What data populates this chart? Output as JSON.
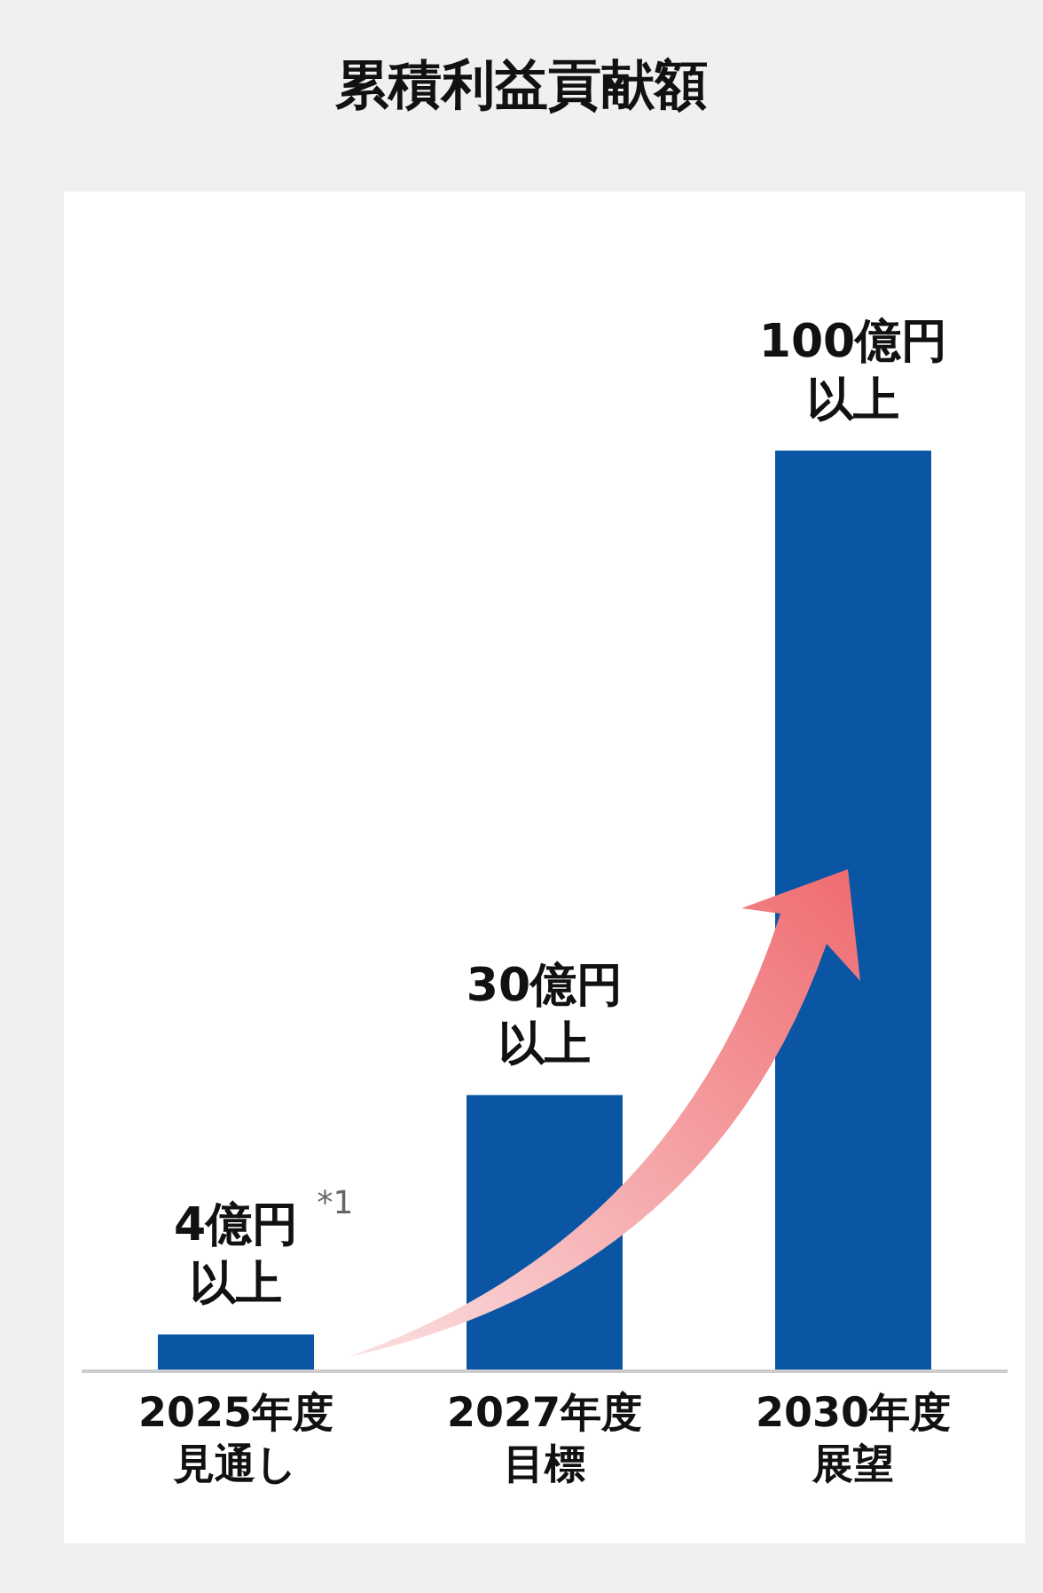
{
  "chart_data": {
    "type": "bar",
    "title": "累積利益貢献額",
    "categories": [
      "2025年度見通し",
      "2027年度目標",
      "2030年度展望"
    ],
    "values": [
      4,
      30,
      100
    ],
    "value_labels": [
      "4億円以上",
      "30億円以上",
      "100億円以上"
    ],
    "color": "#0a56a4",
    "annotations": [
      "*1"
    ]
  }
}
